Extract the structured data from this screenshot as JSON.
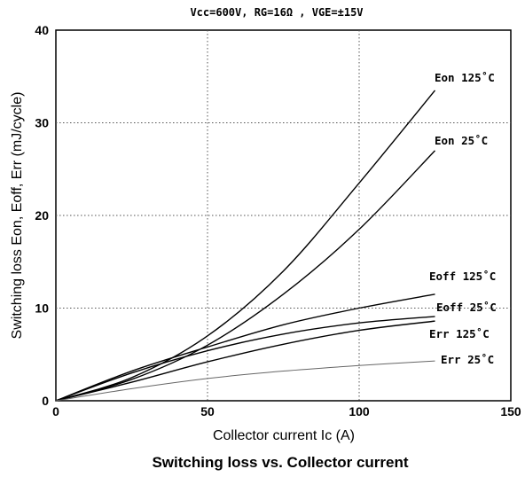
{
  "conditions": "Vcc=600V,  RG=16Ω  ,  VGE=±15V",
  "caption": "Switching loss vs. Collector current",
  "chart_data": {
    "type": "line",
    "title": "Switching loss vs. Collector current",
    "subtitle": "Vcc=600V,  RG=16Ω  ,  VGE=±15V",
    "xlabel": "Collector current    Ic (A)",
    "ylabel": "Switching loss    Eon, Eoff, Err (mJ/cycle)",
    "xlim": [
      0,
      150
    ],
    "ylim": [
      0,
      40
    ],
    "xticks": [
      "0",
      "50",
      "100",
      "150"
    ],
    "yticks": [
      "0",
      "10",
      "20",
      "30",
      "40"
    ],
    "grid": true,
    "series": [
      {
        "name": "Eon 125˚C",
        "x": [
          0,
          25,
          50,
          75,
          100,
          125
        ],
        "y": [
          0,
          2.5,
          7.0,
          14.0,
          23.5,
          33.5
        ],
        "color": "#000000"
      },
      {
        "name": "Eon 25˚C",
        "x": [
          0,
          25,
          50,
          75,
          100,
          125
        ],
        "y": [
          0,
          2.3,
          6.0,
          11.5,
          18.5,
          27.0
        ],
        "color": "#000000"
      },
      {
        "name": "Eoff 125˚C",
        "x": [
          0,
          25,
          50,
          75,
          100,
          125
        ],
        "y": [
          0,
          3.2,
          5.8,
          8.2,
          10.0,
          11.5
        ],
        "color": "#000000"
      },
      {
        "name": "Eoff 25˚C",
        "x": [
          0,
          25,
          50,
          75,
          100,
          125
        ],
        "y": [
          0,
          3.0,
          5.4,
          7.2,
          8.4,
          9.1
        ],
        "color": "#000000"
      },
      {
        "name": "Err 125˚C",
        "x": [
          0,
          25,
          50,
          75,
          100,
          125
        ],
        "y": [
          0,
          2.0,
          4.2,
          6.1,
          7.6,
          8.6
        ],
        "color": "#000000"
      },
      {
        "name": "Err 25˚C",
        "x": [
          0,
          25,
          50,
          75,
          100,
          125
        ],
        "y": [
          0,
          1.3,
          2.4,
          3.2,
          3.8,
          4.3
        ],
        "color": "#666666"
      }
    ]
  }
}
